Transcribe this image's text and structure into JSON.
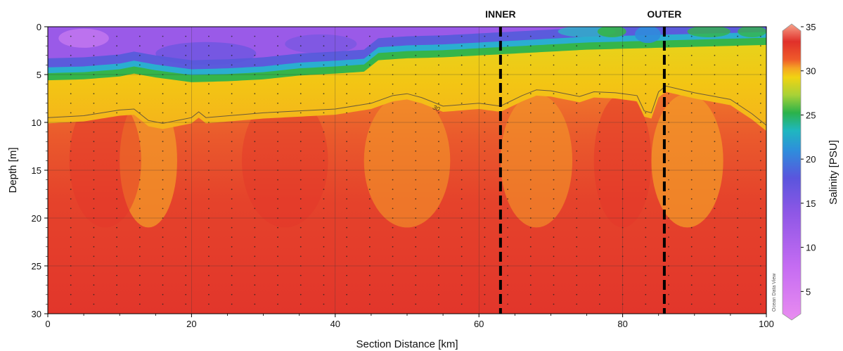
{
  "chart_data": {
    "type": "heatmap",
    "title": "",
    "xlabel": "Section Distance [km]",
    "ylabel": "Depth [m]",
    "xlim": [
      0,
      100
    ],
    "ylim": [
      30,
      0
    ],
    "y_inverted": true,
    "x_ticks": [
      0,
      20,
      40,
      60,
      80,
      100
    ],
    "y_ticks": [
      0,
      5,
      10,
      15,
      20,
      25,
      30
    ],
    "colorbar": {
      "label": "Salinity [PSU]",
      "range": [
        2,
        35
      ],
      "ticks": [
        5,
        10,
        15,
        20,
        25,
        30,
        35
      ],
      "colors": [
        {
          "value": 2,
          "color": "#e98cf0"
        },
        {
          "value": 8,
          "color": "#c56cf2"
        },
        {
          "value": 14,
          "color": "#8f57e6"
        },
        {
          "value": 18,
          "color": "#5a55dd"
        },
        {
          "value": 21,
          "color": "#2f8cdc"
        },
        {
          "value": 23,
          "color": "#1fb7bf"
        },
        {
          "value": 25,
          "color": "#2bb24a"
        },
        {
          "value": 27,
          "color": "#a8d237"
        },
        {
          "value": 29,
          "color": "#f1d312"
        },
        {
          "value": 30,
          "color": "#f5a623"
        },
        {
          "value": 31,
          "color": "#ef5a2a"
        },
        {
          "value": 33,
          "color": "#e0302a"
        },
        {
          "value": 35,
          "color": "#f7a38a"
        }
      ]
    },
    "surface_layer_bottom_depth": {
      "x": [
        0,
        5,
        10,
        12,
        15,
        20,
        25,
        30,
        35,
        40,
        44,
        46,
        50,
        55,
        60,
        65,
        70,
        75,
        80,
        85,
        90,
        95,
        100
      ],
      "y": [
        4.7,
        4.6,
        4.3,
        4.0,
        4.4,
        4.9,
        4.8,
        4.6,
        4.2,
        4.0,
        3.8,
        2.6,
        2.4,
        2.3,
        2.1,
        1.9,
        1.7,
        1.5,
        1.4,
        1.3,
        1.2,
        1.1,
        1.0
      ]
    },
    "isohaline_30": {
      "value": 30,
      "x": [
        0,
        5,
        10,
        12,
        14,
        16,
        20,
        21,
        22,
        30,
        40,
        45,
        48,
        50,
        52,
        55,
        60,
        63,
        66,
        68,
        70,
        74,
        76,
        79,
        82,
        83,
        84,
        85,
        86,
        90,
        95,
        98,
        100
      ],
      "y": [
        9.5,
        9.3,
        8.7,
        8.6,
        9.8,
        10.1,
        9.5,
        8.9,
        9.5,
        9.0,
        8.6,
        8.0,
        7.2,
        7.0,
        7.4,
        8.3,
        8.0,
        8.3,
        7.2,
        6.6,
        6.7,
        7.3,
        6.8,
        6.9,
        7.2,
        8.8,
        9.0,
        6.8,
        6.2,
        6.9,
        7.6,
        9.1,
        10.3
      ]
    },
    "isohaline_label": "30",
    "station_markers": "regular grid of sample dots (every ~3.2 km, ~1 m)",
    "annotations": [
      {
        "label": "INNER",
        "x": 63,
        "style": "dashed vertical line"
      },
      {
        "label": "OUTER",
        "x": 85.8,
        "style": "dashed vertical line"
      }
    ],
    "watermark": "Ocean Data View",
    "grid": true
  }
}
